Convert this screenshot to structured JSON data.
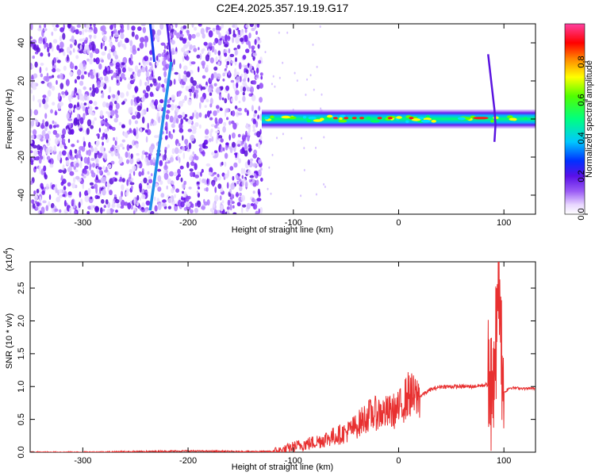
{
  "title": "C2E4.2025.357.19.19.G17",
  "chart_data": [
    {
      "type": "heatmap",
      "xlabel": "Height of straight line (km)",
      "ylabel": "Frequency (Hz)",
      "xlim": [
        -350,
        130
      ],
      "ylim": [
        -50,
        50
      ],
      "xticks": [
        -300,
        -200,
        -100,
        0,
        100
      ],
      "yticks": [
        -40,
        -20,
        0,
        20,
        40
      ],
      "colorbar": {
        "label": "Normalized spectral amplitude",
        "range": [
          0.0,
          1.0
        ],
        "ticks": [
          0.0,
          0.2,
          0.4,
          0.6,
          0.8
        ],
        "colormap": "rainbow (white-violet-blue-cyan-green-yellow-orange-red-magenta)"
      },
      "features": [
        {
          "x_start": -350,
          "x_end": -130,
          "freq_range": [
            -50,
            50
          ],
          "amplitude": 0.15
        },
        {
          "x_start": -236,
          "x_end": -232,
          "freq_range": [
            30,
            50
          ],
          "amplitude": 0.3
        },
        {
          "x_start": -236,
          "x_end": -216,
          "freq_range": [
            -48,
            30
          ],
          "amplitude": 0.35
        },
        {
          "x_start": -130,
          "x_end": 130,
          "freq_center": 0,
          "bandwidth": 5,
          "amplitude": 0.6
        },
        {
          "x_start": 85,
          "x_end": 95,
          "freq_range": [
            -12,
            34
          ],
          "amplitude": 0.2
        }
      ]
    },
    {
      "type": "line",
      "xlabel": "Height of straight line (km)",
      "ylabel": "SNR (10 * v/v)",
      "yscale_label": "(x10",
      "yscale_exp": "4",
      "yscale_close": ")",
      "xlim": [
        -350,
        130
      ],
      "ylim": [
        0.0,
        2.9
      ],
      "xticks": [
        -300,
        -200,
        -100,
        0,
        100
      ],
      "yticks": [
        0.0,
        0.5,
        1.0,
        1.5,
        2.0,
        2.5
      ],
      "color": "#e83030",
      "x": [
        -350,
        -300,
        -250,
        -200,
        -150,
        -120,
        -110,
        -100,
        -90,
        -80,
        -70,
        -60,
        -50,
        -40,
        -30,
        -20,
        -10,
        0,
        10,
        15,
        20,
        30,
        40,
        50,
        60,
        70,
        80,
        85,
        90,
        92,
        95,
        98,
        100,
        105,
        110,
        120,
        130
      ],
      "values": [
        0.0,
        0.0,
        0.01,
        0.02,
        0.01,
        0.01,
        0.03,
        0.08,
        0.12,
        0.15,
        0.2,
        0.25,
        0.3,
        0.4,
        0.55,
        0.6,
        0.6,
        0.65,
        0.9,
        0.82,
        0.85,
        0.95,
        1.0,
        1.0,
        1.0,
        1.0,
        1.02,
        1.03,
        1.05,
        1.5,
        2.8,
        1.3,
        0.9,
        0.98,
        0.98,
        0.97,
        0.97
      ]
    }
  ]
}
